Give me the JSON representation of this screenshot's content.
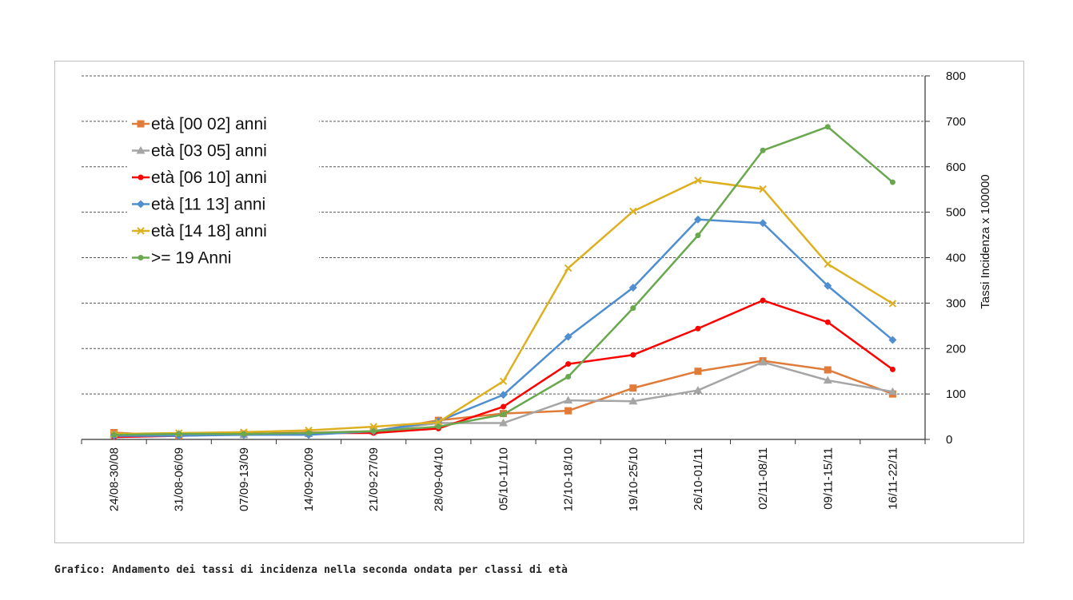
{
  "caption": "Grafico: Andamento dei tassi di incidenza nella seconda ondata per classi di età",
  "chart_data": {
    "type": "line",
    "title": "",
    "xlabel": "",
    "ylabel": "Tassi Incidenza x 100000",
    "y_axis_side": "right",
    "ylim": [
      0,
      800
    ],
    "yticks": [
      0,
      100,
      200,
      300,
      400,
      500,
      600,
      700,
      800
    ],
    "grid": "horizontal dashed",
    "legend_position": "upper-left",
    "categories": [
      "24/08-30/08",
      "31/08-06/09",
      "07/09-13/09",
      "14/09-20/09",
      "21/09-27/09",
      "28/09-04/10",
      "05/10-11/10",
      "12/10-18/10",
      "19/10-25/10",
      "26/10-01/11",
      "02/11-08/11",
      "09/11-15/11",
      "16/11-22/11"
    ],
    "series": [
      {
        "name": "età [00 02] anni",
        "color": "#e07b39",
        "marker": "square",
        "values": [
          15,
          8,
          12,
          15,
          18,
          42,
          57,
          63,
          113,
          150,
          173,
          153,
          100
        ]
      },
      {
        "name": "età [03 05] anni",
        "color": "#a5a5a5",
        "marker": "triangle",
        "values": [
          10,
          12,
          10,
          12,
          18,
          36,
          36,
          86,
          84,
          108,
          170,
          130,
          105
        ]
      },
      {
        "name": "età [06 10] anni",
        "color": "#ff0000",
        "marker": "circle",
        "values": [
          5,
          8,
          12,
          14,
          14,
          24,
          72,
          166,
          186,
          244,
          306,
          258,
          154
        ]
      },
      {
        "name": "età [11 13] anni",
        "color": "#4f8ed0",
        "marker": "diamond",
        "values": [
          8,
          8,
          10,
          10,
          18,
          40,
          98,
          226,
          334,
          484,
          476,
          338,
          219
        ]
      },
      {
        "name": "età [14 18] anni",
        "color": "#ddb020",
        "marker": "x",
        "values": [
          12,
          14,
          16,
          20,
          28,
          38,
          128,
          377,
          502,
          570,
          551,
          386,
          299
        ]
      },
      {
        "name": ">= 19 Anni",
        "color": "#6aa84f",
        "marker": "circle",
        "values": [
          10,
          12,
          12,
          14,
          18,
          28,
          55,
          138,
          289,
          449,
          636,
          688,
          566
        ]
      }
    ]
  }
}
